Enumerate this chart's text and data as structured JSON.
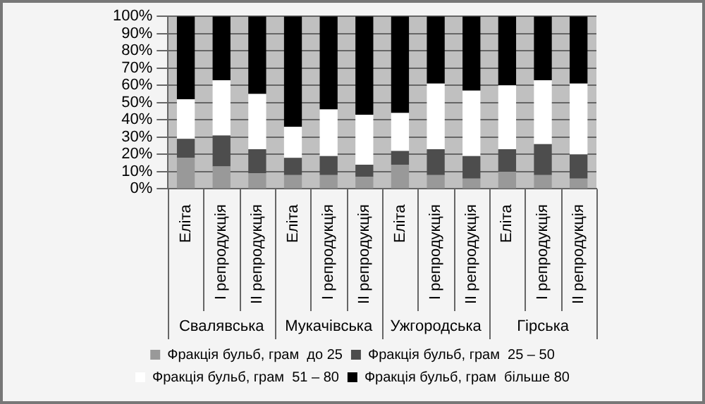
{
  "chart_data": {
    "type": "bar",
    "stacked": true,
    "categories": [
      "Еліта",
      "І репродукція",
      "ІІ репродукція",
      "Еліта",
      "І репродукція",
      "ІІ репродукція",
      "Еліта",
      "І репродукція",
      "ІІ репродукція",
      "Еліта",
      "І репродукція",
      "ІІ репродукція"
    ],
    "annotations": [
      "Свалявська",
      "Мукачівська",
      "Ужгородська",
      "Гірська"
    ],
    "series": [
      {
        "name": "Фракція бульб, грам  до 25",
        "color": "#999999",
        "values": [
          18,
          13,
          9,
          8,
          8,
          7,
          14,
          8,
          6,
          10,
          8,
          6
        ]
      },
      {
        "name": "Фракція бульб, грам  25 – 50",
        "color": "#4d4d4d",
        "values": [
          11,
          18,
          14,
          10,
          11,
          7,
          8,
          15,
          13,
          13,
          18,
          14
        ]
      },
      {
        "name": "Фракція бульб, грам  51 – 80",
        "color": "#ffffff",
        "values": [
          23,
          32,
          32,
          18,
          27,
          29,
          22,
          38,
          38,
          37,
          37,
          41
        ]
      },
      {
        "name": "Фракція бульб, грам  більше 80",
        "color": "#000000",
        "values": [
          48,
          37,
          45,
          64,
          54,
          57,
          56,
          39,
          43,
          40,
          37,
          39
        ]
      }
    ],
    "ylim": [
      0,
      100
    ],
    "yticks": [
      {
        "value": 0,
        "label": "0%"
      },
      {
        "value": 10,
        "label": "10%"
      },
      {
        "value": 20,
        "label": "20%"
      },
      {
        "value": 30,
        "label": "30%"
      },
      {
        "value": 40,
        "label": "40%"
      },
      {
        "value": 50,
        "label": "50%"
      },
      {
        "value": 60,
        "label": "60%"
      },
      {
        "value": 70,
        "label": "70%"
      },
      {
        "value": 80,
        "label": "80%"
      },
      {
        "value": 90,
        "label": "90%"
      },
      {
        "value": 100,
        "label": "100%"
      }
    ],
    "grid": true,
    "legend": "bottom"
  }
}
